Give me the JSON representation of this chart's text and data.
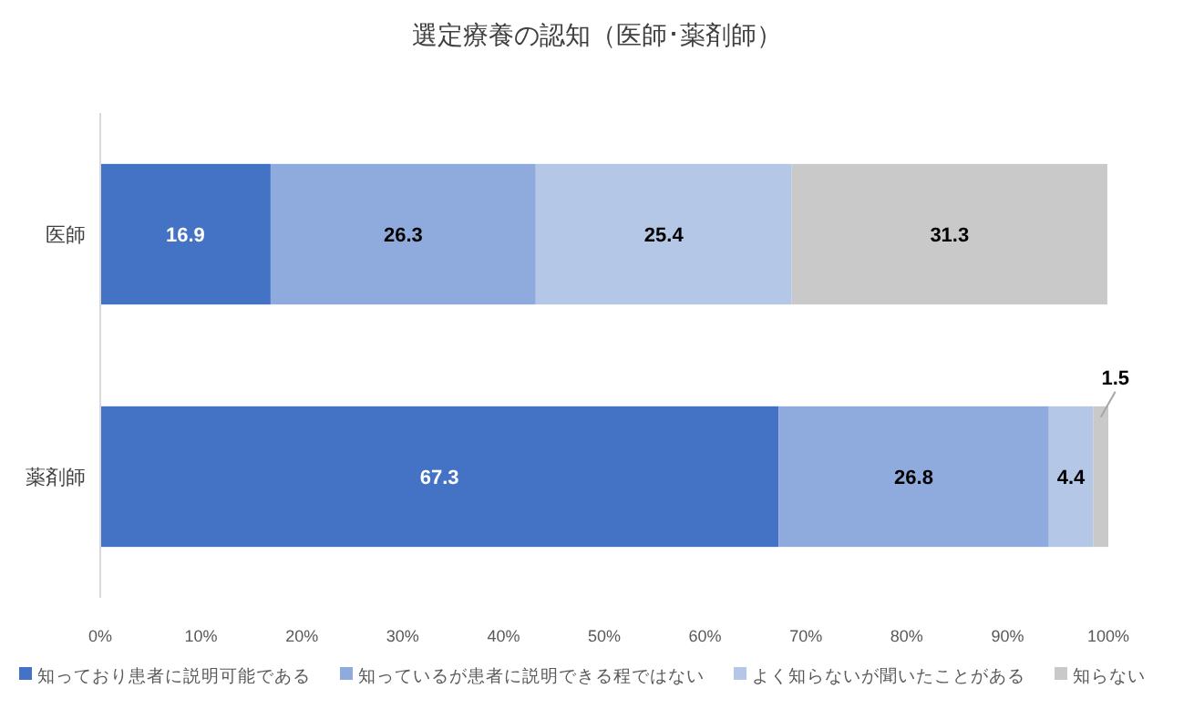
{
  "chart_data": {
    "type": "bar",
    "title": "選定療養の認知（医師･薬剤師）",
    "orientation": "horizontal",
    "stacked": true,
    "categories": [
      "医師",
      "薬剤師"
    ],
    "series": [
      {
        "name": "知っており患者に説明可能である",
        "color": "#4472c4",
        "values": [
          16.9,
          67.3
        ]
      },
      {
        "name": "知っているが患者に説明できる程ではない",
        "color": "#8faadc",
        "values": [
          26.3,
          26.8
        ]
      },
      {
        "name": "よく知らないが聞いたことがある",
        "color": "#b4c7e7",
        "values": [
          25.4,
          4.4
        ]
      },
      {
        "name": "知らない",
        "color": "#c9c9c9",
        "values": [
          31.3,
          1.5
        ]
      }
    ],
    "xlim": [
      0,
      100
    ],
    "xticks": [
      {
        "value": 0,
        "label": "0%"
      },
      {
        "value": 10,
        "label": "10%"
      },
      {
        "value": 20,
        "label": "20%"
      },
      {
        "value": 30,
        "label": "30%"
      },
      {
        "value": 40,
        "label": "40%"
      },
      {
        "value": 50,
        "label": "50%"
      },
      {
        "value": 60,
        "label": "60%"
      },
      {
        "value": 70,
        "label": "70%"
      },
      {
        "value": 80,
        "label": "80%"
      },
      {
        "value": 90,
        "label": "90%"
      },
      {
        "value": 100,
        "label": "100%"
      }
    ],
    "data_labels": true,
    "legend": "bottom",
    "grid": false
  }
}
